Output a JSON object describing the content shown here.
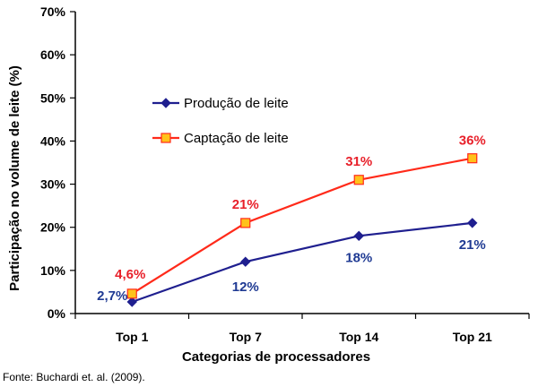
{
  "chart_data": {
    "type": "line",
    "title": "",
    "categories": [
      "Top 1",
      "Top 7",
      "Top 14",
      "Top 21"
    ],
    "xlabel": "Categorias de processadores",
    "ylabel": "Participação no volume de leite (%)",
    "ylim": [
      0,
      70
    ],
    "yticks": [
      0,
      10,
      20,
      30,
      40,
      50,
      60,
      70
    ],
    "ytick_labels": [
      "0%",
      "10%",
      "20%",
      "30%",
      "40%",
      "50%",
      "60%",
      "70%"
    ],
    "grid": false,
    "legend_position": "upper-left-inside",
    "series": [
      {
        "name": "Produção de leite",
        "values": [
          2.7,
          12,
          18,
          21
        ],
        "labels": [
          "2,7%",
          "12%",
          "18%",
          "21%"
        ],
        "color": "#1f1f8f",
        "label_color": "#1f3a93",
        "marker": "diamond"
      },
      {
        "name": "Captação de leite",
        "values": [
          4.6,
          21,
          31,
          36
        ],
        "labels": [
          "4,6%",
          "21%",
          "31%",
          "36%"
        ],
        "color": "#ff2a1a",
        "label_color": "#e8202a",
        "marker": "square",
        "marker_fill": "#ffc21a"
      }
    ]
  },
  "source": "Fonte: Buchardi et. al. (2009)."
}
